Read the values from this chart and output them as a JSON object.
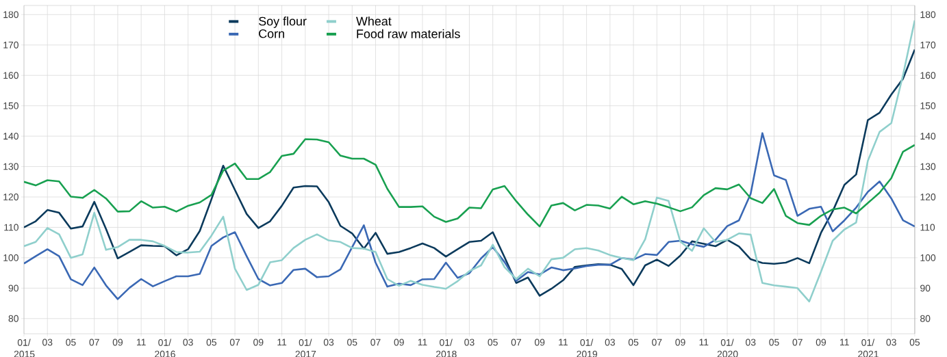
{
  "chart_data": {
    "type": "line",
    "x": [
      "2015-01",
      "2015-02",
      "2015-03",
      "2015-04",
      "2015-05",
      "2015-06",
      "2015-07",
      "2015-08",
      "2015-09",
      "2015-10",
      "2015-11",
      "2015-12",
      "2016-01",
      "2016-02",
      "2016-03",
      "2016-04",
      "2016-05",
      "2016-06",
      "2016-07",
      "2016-08",
      "2016-09",
      "2016-10",
      "2016-11",
      "2016-12",
      "2017-01",
      "2017-02",
      "2017-03",
      "2017-04",
      "2017-05",
      "2017-06",
      "2017-07",
      "2017-08",
      "2017-09",
      "2017-10",
      "2017-11",
      "2017-12",
      "2018-01",
      "2018-02",
      "2018-03",
      "2018-04",
      "2018-05",
      "2018-06",
      "2018-07",
      "2018-08",
      "2018-09",
      "2018-10",
      "2018-11",
      "2018-12",
      "2019-01",
      "2019-02",
      "2019-03",
      "2019-04",
      "2019-05",
      "2019-06",
      "2019-07",
      "2019-08",
      "2019-09",
      "2019-10",
      "2019-11",
      "2019-12",
      "2020-01",
      "2020-02",
      "2020-03",
      "2020-04",
      "2020-05",
      "2020-06",
      "2020-07",
      "2020-08",
      "2020-09",
      "2020-10",
      "2020-11",
      "2020-12",
      "2021-01",
      "2021-02",
      "2021-03",
      "2021-04",
      "2021-05"
    ],
    "series": [
      {
        "name": "Soy flour",
        "color": "#0b3a5c",
        "values": [
          110,
          112,
          115.7,
          114.8,
          109.6,
          110.3,
          118.4,
          109.5,
          99.8,
          101.9,
          104.1,
          103.9,
          103.8,
          100.8,
          102.8,
          108.8,
          119.3,
          130.3,
          122.3,
          114.4,
          109.8,
          112,
          117.1,
          123.1,
          123.6,
          123.5,
          118.3,
          110.5,
          108,
          103,
          108.2,
          101.3,
          101.9,
          103.2,
          104.7,
          103.2,
          100.4,
          102.8,
          105.2,
          105.6,
          108.4,
          100.2,
          91.7,
          93.5,
          87.5,
          89.8,
          92.6,
          97,
          97.5,
          97.9,
          97.7,
          96.3,
          91,
          97.5,
          99.4,
          97.3,
          100.7,
          105.4,
          104.6,
          103.8,
          105.9,
          103.7,
          99.5,
          98.3,
          98,
          98.4,
          99.9,
          98.2,
          108.2,
          115.3,
          124,
          127.4,
          145.3,
          147.7,
          153.7,
          158.9,
          168.5
        ]
      },
      {
        "name": "Corn",
        "color": "#3a68b4",
        "values": [
          98.1,
          100.5,
          102.8,
          100.5,
          92.9,
          91,
          96.8,
          90.9,
          86.4,
          90.1,
          93,
          90.6,
          92.3,
          93.9,
          93.9,
          94.7,
          103.9,
          106.7,
          108.4,
          100.5,
          93,
          90.9,
          91.7,
          96,
          96.4,
          93.6,
          93.9,
          96.2,
          103.5,
          110.7,
          98.4,
          90.5,
          91.5,
          91,
          92.9,
          93,
          98.4,
          93.4,
          94.9,
          99.8,
          103.5,
          98.6,
          92.4,
          95.3,
          94.5,
          96.8,
          95.9,
          96.5,
          97.3,
          97.7,
          97.7,
          99.9,
          99.4,
          101.2,
          100.9,
          105.2,
          105.6,
          104.4,
          103.6,
          105.9,
          110.4,
          112.3,
          121,
          141,
          127.1,
          125.6,
          113.8,
          116.1,
          116.8,
          108.7,
          112.3,
          116.5,
          121.7,
          125.1,
          119.5,
          112.3,
          110.3
        ]
      },
      {
        "name": "Wheat",
        "color": "#8fcfcc",
        "values": [
          103.8,
          105.2,
          109.8,
          107.7,
          100,
          101.1,
          114.8,
          102.6,
          103.5,
          105.9,
          105.9,
          105.4,
          103.9,
          101.9,
          101.7,
          102,
          107.3,
          113.5,
          96.4,
          89.4,
          91.1,
          98.5,
          99.2,
          103.2,
          105.9,
          107.7,
          105.7,
          105.2,
          103.2,
          103,
          101.9,
          93,
          90.8,
          92.4,
          91.1,
          90.4,
          89.8,
          92.3,
          95.6,
          97.5,
          104.3,
          96.9,
          93,
          96.4,
          93.9,
          99.5,
          100,
          102.8,
          103.2,
          102.4,
          100.9,
          99.9,
          99.2,
          106.1,
          119.8,
          118.7,
          105.3,
          102.3,
          109.7,
          105.2,
          105.9,
          108,
          107.6,
          91.7,
          90.9,
          90.5,
          90,
          85.6,
          95.4,
          105.6,
          109.3,
          111.6,
          131.9,
          141.4,
          144.3,
          160.1,
          178.1
        ]
      },
      {
        "name": "Food raw materials",
        "color": "#18a050",
        "values": [
          125,
          123.8,
          125.5,
          125.1,
          120.1,
          119.7,
          122.3,
          119.5,
          115.2,
          115.3,
          118.6,
          116.5,
          116.8,
          115.2,
          117.1,
          118.2,
          120.7,
          128.7,
          131,
          125.9,
          125.9,
          128.2,
          133.5,
          134.2,
          139,
          138.9,
          138,
          133.6,
          132.6,
          132.6,
          130.6,
          122.7,
          116.7,
          116.7,
          116.9,
          113.5,
          111.8,
          112.9,
          116.5,
          116.3,
          122.5,
          123.6,
          118.6,
          114.2,
          110.3,
          117.2,
          118,
          115.6,
          117.4,
          117.2,
          116.2,
          120.1,
          117.6,
          118.6,
          117.8,
          116.6,
          115.3,
          116.6,
          120.6,
          122.9,
          122.5,
          124.1,
          119.6,
          118,
          122.6,
          113.8,
          111.4,
          110.8,
          113.8,
          115.9,
          116.5,
          114.6,
          118,
          121.4,
          126.2,
          134.9,
          137.1
        ]
      }
    ],
    "xlim": [
      "2015-01",
      "2021-05"
    ],
    "xticks": [
      {
        "value": "2015-01",
        "label": "01/ 2015"
      },
      {
        "value": "2015-03",
        "label": "03"
      },
      {
        "value": "2015-05",
        "label": "05"
      },
      {
        "value": "2015-07",
        "label": "07"
      },
      {
        "value": "2015-09",
        "label": "09"
      },
      {
        "value": "2015-11",
        "label": "11"
      },
      {
        "value": "2016-01",
        "label": "01/ 2016"
      },
      {
        "value": "2016-03",
        "label": "03"
      },
      {
        "value": "2016-05",
        "label": "05"
      },
      {
        "value": "2016-07",
        "label": "07"
      },
      {
        "value": "2016-09",
        "label": "09"
      },
      {
        "value": "2016-11",
        "label": "11"
      },
      {
        "value": "2017-01",
        "label": "01/ 2017"
      },
      {
        "value": "2017-03",
        "label": "03"
      },
      {
        "value": "2017-05",
        "label": "05"
      },
      {
        "value": "2017-07",
        "label": "07"
      },
      {
        "value": "2017-09",
        "label": "09"
      },
      {
        "value": "2017-11",
        "label": "11"
      },
      {
        "value": "2018-01",
        "label": "01/ 2018"
      },
      {
        "value": "2018-03",
        "label": "03"
      },
      {
        "value": "2018-05",
        "label": "05"
      },
      {
        "value": "2018-07",
        "label": "07"
      },
      {
        "value": "2018-09",
        "label": "09"
      },
      {
        "value": "2018-11",
        "label": "11"
      },
      {
        "value": "2019-01",
        "label": "01/ 2019"
      },
      {
        "value": "2019-03",
        "label": "03"
      },
      {
        "value": "2019-05",
        "label": "05"
      },
      {
        "value": "2019-07",
        "label": "07"
      },
      {
        "value": "2019-09",
        "label": "09"
      },
      {
        "value": "2019-11",
        "label": "11"
      },
      {
        "value": "2020-01",
        "label": "01/ 2020"
      },
      {
        "value": "2020-03",
        "label": "03"
      },
      {
        "value": "2020-05",
        "label": "05"
      },
      {
        "value": "2020-07",
        "label": "07"
      },
      {
        "value": "2020-09",
        "label": "09"
      },
      {
        "value": "2020-11",
        "label": "11"
      },
      {
        "value": "2021-01",
        "label": "01/ 2021"
      },
      {
        "value": "2021-03",
        "label": "03"
      },
      {
        "value": "2021-05",
        "label": "05"
      }
    ],
    "ylim": [
      75,
      183
    ],
    "yticks": [
      80,
      90,
      100,
      110,
      120,
      130,
      140,
      150,
      160,
      170,
      180
    ],
    "y2lim": [
      75,
      183
    ],
    "y2ticks": [
      80,
      90,
      100,
      110,
      120,
      130,
      140,
      150,
      160,
      170,
      180
    ],
    "grid": true,
    "legend": "top",
    "marker": "none",
    "line_style": "solid"
  }
}
